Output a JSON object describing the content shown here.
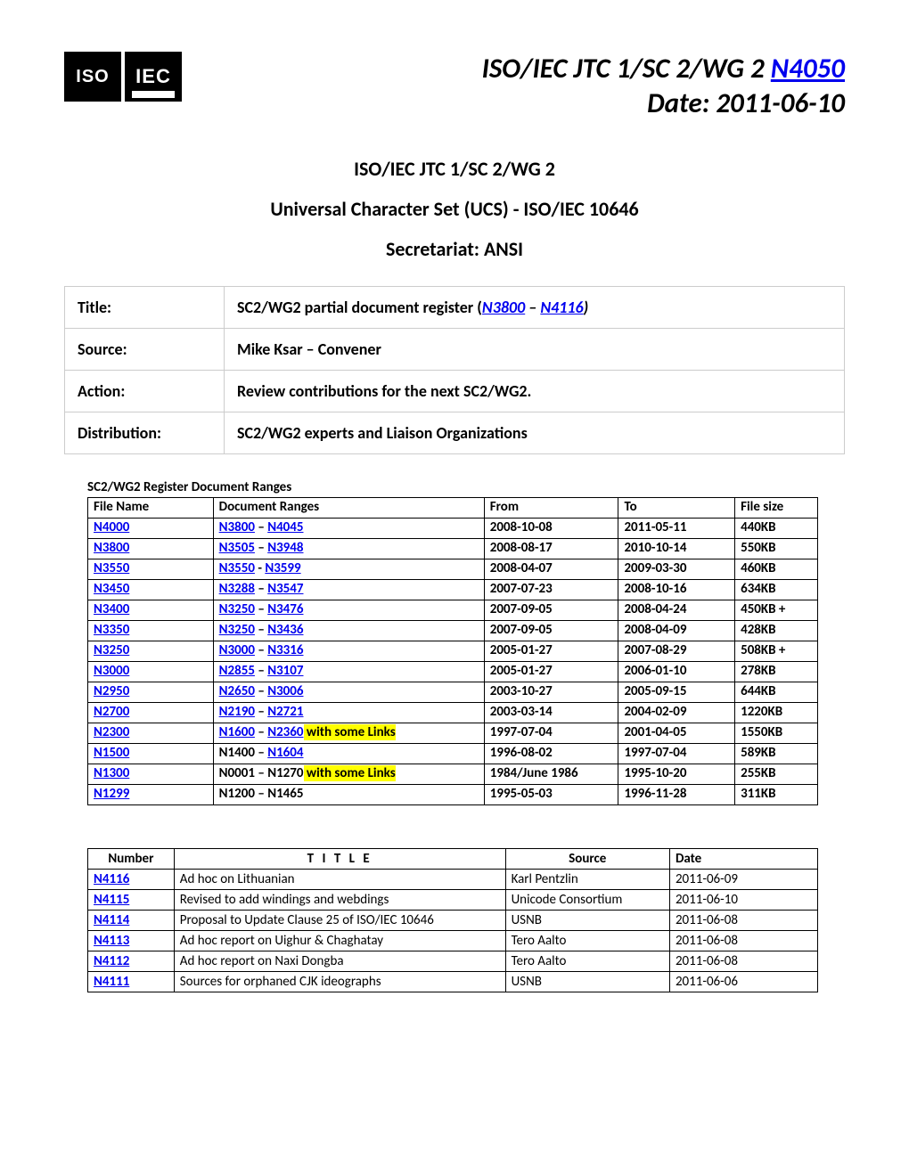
{
  "header": {
    "org": "ISO/IEC JTC 1/SC 2/WG 2",
    "doc_link": "N4050",
    "date_label": "Date:",
    "date": "2011-06-10",
    "sub1": "ISO/IEC JTC 1/SC 2/WG 2",
    "sub2": "Universal Character Set (UCS) - ISO/IEC 10646",
    "sub3": "Secretariat: ANSI"
  },
  "meta": {
    "title_label": "Title:",
    "title_prefix": "SC2/WG2 partial document register (",
    "title_link1": "N3800",
    "title_sep": " – ",
    "title_link2": "N4116",
    "title_suffix": ")",
    "source_label": "Source:",
    "source": "Mike Ksar – Convener",
    "action_label": "Action:",
    "action": "Review contributions for the next SC2/WG2.",
    "dist_label": "Distribution:",
    "dist": "SC2/WG2 experts and Liaison Organizations"
  },
  "ranges": {
    "caption": "SC2/WG2 Register Document Ranges",
    "columns": [
      "File Name",
      "Document Ranges",
      "From",
      "To",
      "File size"
    ],
    "rows": [
      {
        "file": "N4000",
        "r1": "N3800",
        "sep": " – ",
        "r2": "N4045",
        "r1_link": true,
        "r2_link": true,
        "note": "",
        "from": "2008-10-08",
        "to": "2011-05-11",
        "size": "440KB"
      },
      {
        "file": "N3800",
        "r1": "N3505",
        "sep": " – ",
        "r2": "N3948",
        "r1_link": true,
        "r2_link": true,
        "note": "",
        "from": "2008-08-17",
        "to": "2010-10-14",
        "size": "550KB"
      },
      {
        "file": "N3550",
        "r1": "N3550",
        "sep": " - ",
        "r2": "N3599",
        "r1_link": true,
        "r2_link": true,
        "note": "",
        "from": "2008-04-07",
        "to": "2009-03-30",
        "size": "460KB"
      },
      {
        "file": "N3450",
        "r1": "N3288",
        "sep": " – ",
        "r2": "N3547",
        "r1_link": true,
        "r2_link": true,
        "note": "",
        "from": "2007-07-23",
        "to": "2008-10-16",
        "size": "634KB"
      },
      {
        "file": "N3400",
        "r1": "N3250",
        "sep": " – ",
        "r2": "N3476",
        "r1_link": true,
        "r2_link": true,
        "note": "",
        "from": "2007-09-05",
        "to": "2008-04-24",
        "size": "450KB +"
      },
      {
        "file": "N3350",
        "r1": "N3250",
        "sep": " – ",
        "r2": "N3436",
        "r1_link": true,
        "r2_link": true,
        "note": "",
        "from": "2007-09-05",
        "to": "2008-04-09",
        "size": "428KB"
      },
      {
        "file": "N3250",
        "r1": "N3000",
        "sep": " – ",
        "r2": "N3316",
        "r1_link": true,
        "r2_link": true,
        "note": "",
        "from": "2005-01-27",
        "to": "2007-08-29",
        "size": "508KB +"
      },
      {
        "file": "N3000",
        "r1": "N2855",
        "sep": " – ",
        "r2": "N3107",
        "r1_link": true,
        "r2_link": true,
        "note": "",
        "from": "2005-01-27",
        "to": "2006-01-10",
        "size": "278KB"
      },
      {
        "file": "N2950",
        "r1": "N2650",
        "sep": " – ",
        "r2": "N3006",
        "r1_link": true,
        "r2_link": true,
        "note": "",
        "from": "2003-10-27",
        "to": "2005-09-15",
        "size": "644KB"
      },
      {
        "file": "N2700",
        "r1": "N2190",
        "sep": " – ",
        "r2": "N2721",
        "r1_link": true,
        "r2_link": true,
        "note": "",
        "from": "2003-03-14",
        "to": "2004-02-09",
        "size": "1220KB"
      },
      {
        "file": "N2300",
        "r1": "N1600",
        "sep": " – ",
        "r2": "N2360",
        "r1_link": true,
        "r2_link": true,
        "note": " with some Links",
        "from": "1997-07-04",
        "to": "2001-04-05",
        "size": "1550KB"
      },
      {
        "file": "N1500",
        "r1": "N1400",
        "sep": " – ",
        "r2": "N1604",
        "r1_link": false,
        "r2_link": true,
        "note": "",
        "from": "1996-08-02",
        "to": "1997-07-04",
        "size": "589KB"
      },
      {
        "file": "N1300",
        "r1": "N0001",
        "sep": " – ",
        "r2": "N1270",
        "r1_link": false,
        "r2_link": false,
        "note": " with some Links",
        "from": "1984/June 1986",
        "to": "1995-10-20",
        "size": "255KB"
      },
      {
        "file": "N1299",
        "r1": "N1200",
        "sep": " – ",
        "r2": "N1465",
        "r1_link": false,
        "r2_link": false,
        "note": "",
        "from": "1995-05-03",
        "to": "1996-11-28",
        "size": "311KB"
      }
    ]
  },
  "docs": {
    "columns": [
      "Number",
      "T I T L E",
      "Source",
      "Date"
    ],
    "rows": [
      {
        "num": "N4116",
        "title": "Ad hoc on Lithuanian",
        "source": "Karl Pentzlin",
        "date": "2011-06-09"
      },
      {
        "num": "N4115",
        "title": "Revised to add windings and webdings",
        "source": "Unicode Consortium",
        "date": "2011-06-10"
      },
      {
        "num": "N4114",
        "title": "Proposal to Update Clause 25 of ISO/IEC 10646",
        "source": "USNB",
        "date": "2011-06-08"
      },
      {
        "num": "N4113",
        "title": "Ad hoc report on Uighur & Chaghatay",
        "source": "Tero Aalto",
        "date": "2011-06-08"
      },
      {
        "num": "N4112",
        "title": "Ad hoc report on Naxi Dongba",
        "source": "Tero Aalto",
        "date": "2011-06-08"
      },
      {
        "num": "N4111",
        "title": "Sources for orphaned CJK ideographs",
        "source": "USNB",
        "date": "2011-06-06"
      }
    ]
  }
}
